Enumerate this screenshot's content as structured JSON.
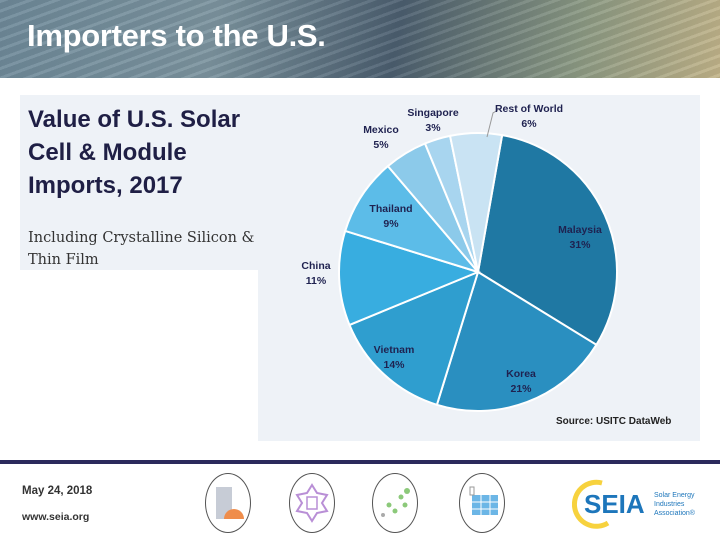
{
  "header": {
    "title": "Importers to the U.S."
  },
  "slide": {
    "title": "Value of U.S. Solar Cell & Module Imports, 2017",
    "subtitle": "Including Crystalline Silicon & Thin Film",
    "source": "Source: USITC DataWeb"
  },
  "chart_data": {
    "type": "pie",
    "title": "Value of U.S. Solar Cell & Module Imports, 2017",
    "categories": [
      "Malaysia",
      "Korea",
      "Vietnam",
      "China",
      "Thailand",
      "Mexico",
      "Singapore",
      "Rest of World"
    ],
    "values": [
      31,
      21,
      14,
      11,
      9,
      5,
      3,
      6
    ],
    "labels": [
      "31%",
      "21%",
      "14%",
      "11%",
      "9%",
      "5%",
      "3%",
      "6%"
    ],
    "colors": [
      "#1f78a3",
      "#2a8fc0",
      "#2f9ecf",
      "#38ade0",
      "#5cbce8",
      "#8ccaea",
      "#a8d5ef",
      "#c9e3f3"
    ],
    "unit": "%"
  },
  "footer": {
    "date": "May 24, 2018",
    "url": "www.seia.org",
    "icons": [
      "building-hardhat-icon",
      "inverter-icon",
      "network-dots-icon",
      "solar-panel-icon"
    ],
    "logo_text": "SEIA",
    "logo_subtext": "Solar Energy Industries Association®"
  }
}
